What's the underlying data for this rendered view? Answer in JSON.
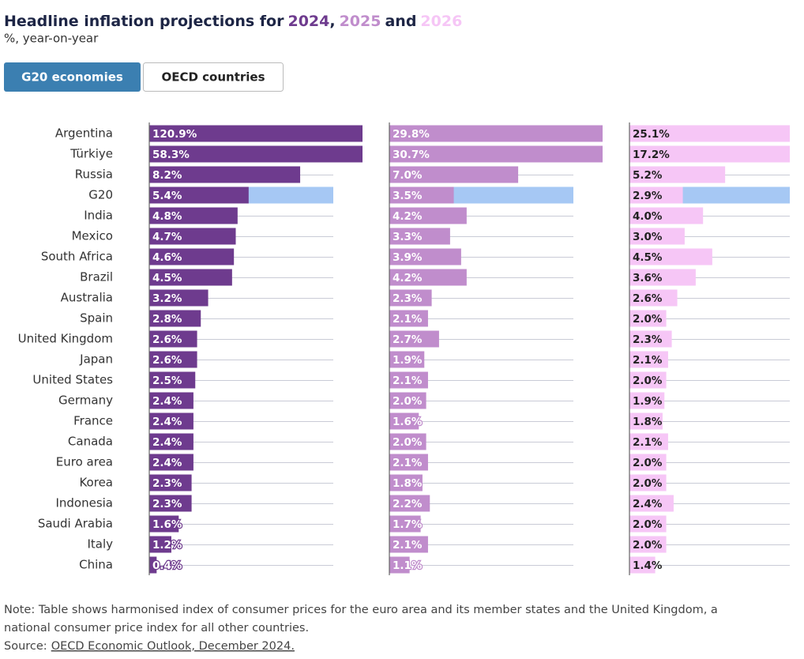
{
  "chart_data": {
    "type": "bar",
    "orientation": "horizontal",
    "title": "Headline inflation projections for",
    "title_separators": [
      ",",
      "and"
    ],
    "subtitle": "%, year-on-year",
    "tabs": [
      "G20 economies",
      "OECD countries"
    ],
    "active_tab": 0,
    "highlight": "G20",
    "highlight_color": "#a6c8f4",
    "categories": [
      "Argentina",
      "Türkiye",
      "Russia",
      "G20",
      "India",
      "Mexico",
      "South Africa",
      "Brazil",
      "Australia",
      "Spain",
      "United Kingdom",
      "Japan",
      "United States",
      "Germany",
      "France",
      "Canada",
      "Euro area",
      "Korea",
      "Indonesia",
      "Saudi Arabia",
      "Italy",
      "China"
    ],
    "xlim": [
      0,
      10
    ],
    "series": [
      {
        "name": "2024",
        "color": "#6e3b8e",
        "label_color": "#ffffff",
        "values": [
          120.9,
          58.3,
          8.2,
          5.4,
          4.8,
          4.7,
          4.6,
          4.5,
          3.2,
          2.8,
          2.6,
          2.6,
          2.5,
          2.4,
          2.4,
          2.4,
          2.4,
          2.3,
          2.3,
          1.6,
          1.2,
          0.4
        ],
        "value_labels": [
          "120.9%",
          "58.3%",
          "8.2%",
          "5.4%",
          "4.8%",
          "4.7%",
          "4.6%",
          "4.5%",
          "3.2%",
          "2.8%",
          "2.6%",
          "2.6%",
          "2.5%",
          "2.4%",
          "2.4%",
          "2.4%",
          "2.4%",
          "2.3%",
          "2.3%",
          "1.6%",
          "1.2%",
          "0.4%"
        ]
      },
      {
        "name": "2025",
        "color": "#c08dcc",
        "label_color": "#ffffff",
        "values": [
          29.8,
          30.7,
          7.0,
          3.5,
          4.2,
          3.3,
          3.9,
          4.2,
          2.3,
          2.1,
          2.7,
          1.9,
          2.1,
          2.0,
          1.6,
          2.0,
          2.1,
          1.8,
          2.2,
          1.7,
          2.1,
          1.1
        ],
        "value_labels": [
          "29.8%",
          "30.7%",
          "7.0%",
          "3.5%",
          "4.2%",
          "3.3%",
          "3.9%",
          "4.2%",
          "2.3%",
          "2.1%",
          "2.7%",
          "1.9%",
          "2.1%",
          "2.0%",
          "1.6%",
          "2.0%",
          "2.1%",
          "1.8%",
          "2.2%",
          "1.7%",
          "2.1%",
          "1.1%"
        ]
      },
      {
        "name": "2026",
        "color": "#f6c6f6",
        "label_color": "#222222",
        "values": [
          25.1,
          17.2,
          5.2,
          2.9,
          4.0,
          3.0,
          4.5,
          3.6,
          2.6,
          2.0,
          2.3,
          2.1,
          2.0,
          1.9,
          1.8,
          2.1,
          2.0,
          2.0,
          2.4,
          2.0,
          2.0,
          1.4
        ],
        "value_labels": [
          "25.1%",
          "17.2%",
          "5.2%",
          "2.9%",
          "4.0%",
          "3.0%",
          "4.5%",
          "3.6%",
          "2.6%",
          "2.0%",
          "2.3%",
          "2.1%",
          "2.0%",
          "1.9%",
          "1.8%",
          "2.1%",
          "2.0%",
          "2.0%",
          "2.4%",
          "2.0%",
          "2.0%",
          "1.4%"
        ]
      }
    ],
    "note_lines": [
      "Note: Table shows harmonised index of consumer prices for the euro area and its member states and the United Kingdom, a",
      "national consumer price index for all other countries."
    ],
    "source_label": "Source:",
    "source_link": "OECD Economic Outlook, December 2024."
  }
}
